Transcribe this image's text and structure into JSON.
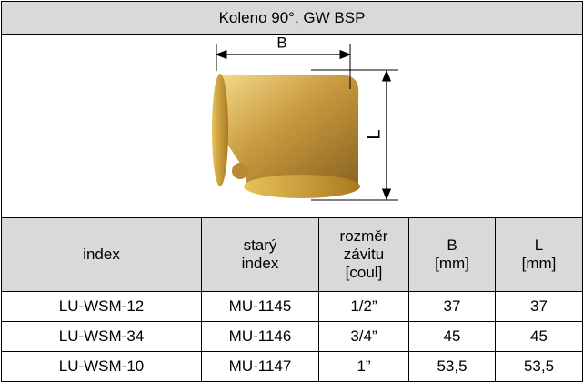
{
  "table": {
    "title": "Koleno 90°, GW BSP",
    "image": {
      "labels": [
        "B",
        "L"
      ]
    },
    "header": [
      [
        "index"
      ],
      [
        "starý",
        "index"
      ],
      [
        "rozměr",
        "závitu",
        "[coul]"
      ],
      [
        "B",
        "[mm]"
      ],
      [
        "L",
        "[mm]"
      ]
    ],
    "rows": [
      [
        "LU-WSM-12",
        "MU-1145",
        "1/2”",
        "37",
        "37"
      ],
      [
        "LU-WSM-34",
        "MU-1146",
        "3/4”",
        "45",
        "45"
      ],
      [
        "LU-WSM-10",
        "MU-1147",
        "1”",
        "53,5",
        "53,5"
      ]
    ]
  }
}
